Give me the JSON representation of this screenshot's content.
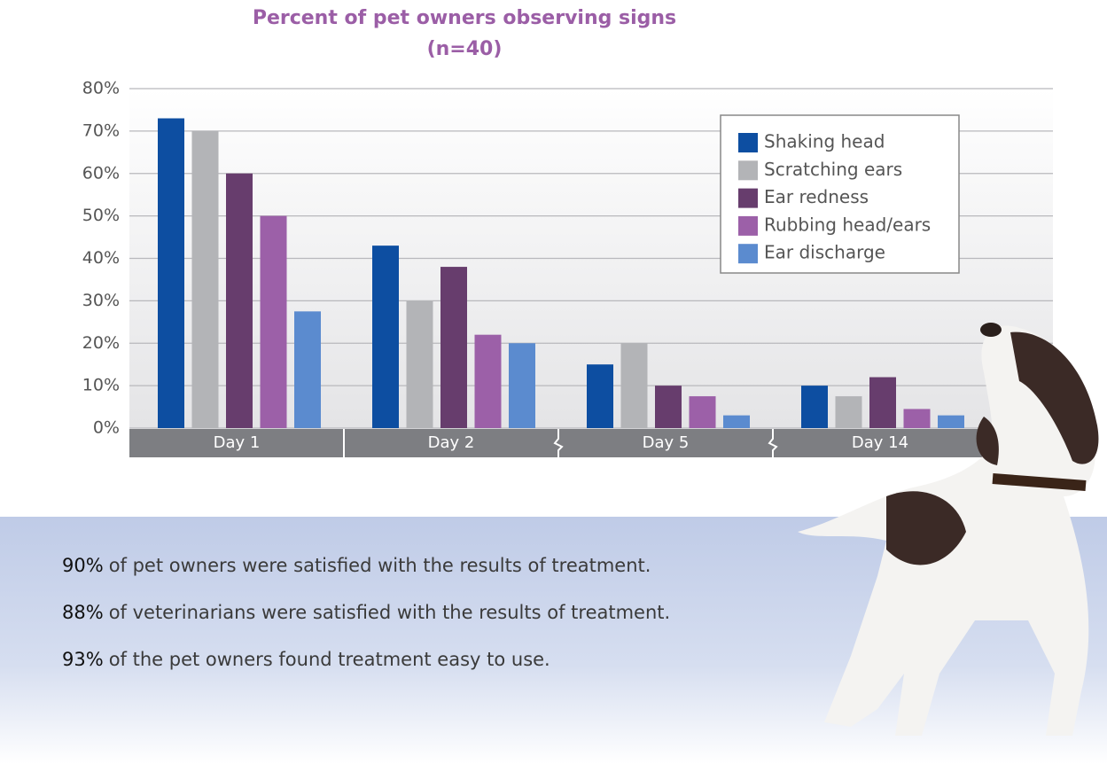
{
  "chart_data": {
    "type": "bar",
    "title": "Percent of pet owners observing signs",
    "subtitle": "(n=40)",
    "categories": [
      "Day 1",
      "Day 2",
      "Day 5",
      "Day 14"
    ],
    "series": [
      {
        "name": "Shaking head",
        "color": "#0d4ea1",
        "values": [
          73,
          43,
          15,
          10
        ]
      },
      {
        "name": "Scratching ears",
        "color": "#b3b4b7",
        "values": [
          70,
          30,
          20,
          7.5
        ]
      },
      {
        "name": "Ear redness",
        "color": "#673d6d",
        "values": [
          60,
          38,
          10,
          12
        ]
      },
      {
        "name": "Rubbing head/ears",
        "color": "#9c60a8",
        "values": [
          50,
          22,
          7.5,
          4.5
        ]
      },
      {
        "name": "Ear discharge",
        "color": "#5b8bcf",
        "values": [
          27.5,
          20,
          3,
          3
        ]
      }
    ],
    "ylim": [
      0,
      80
    ],
    "yticks": [
      {
        "value": 0,
        "label": "0%"
      },
      {
        "value": 10,
        "label": "10%"
      },
      {
        "value": 20,
        "label": "20%"
      },
      {
        "value": 30,
        "label": "30%"
      },
      {
        "value": 40,
        "label": "40%"
      },
      {
        "value": 50,
        "label": "50%"
      },
      {
        "value": 60,
        "label": "60%"
      },
      {
        "value": 70,
        "label": "70%"
      },
      {
        "value": 80,
        "label": "80%"
      }
    ],
    "grid": true,
    "legend": "upper right"
  },
  "notes": [
    {
      "highlight": "90%",
      "text": "of pet owners were satisfied with the results of treatment."
    },
    {
      "highlight": "88%",
      "text": "of veterinarians were satisfied with the results of treatment."
    },
    {
      "highlight": "93%",
      "text": "of the pet owners found treatment easy to use."
    }
  ]
}
